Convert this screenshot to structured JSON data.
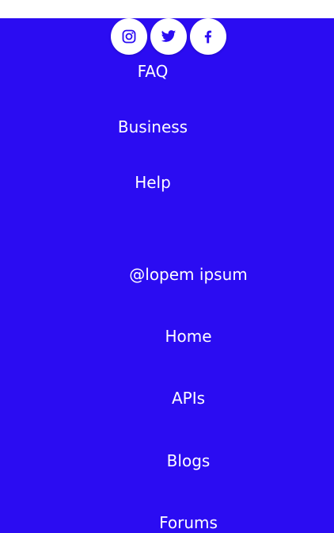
{
  "colors": {
    "background": "#2b0cf2",
    "top_bar": "#ffffff",
    "text": "#ffffff",
    "icon": "#2b0cf2"
  },
  "social": {
    "icons": [
      "instagram-icon",
      "twitter-icon",
      "facebook-icon"
    ]
  },
  "links_group_1": {
    "faq": "FAQ",
    "business": "Business",
    "help": "Help"
  },
  "handle": "@lopem ipsum",
  "links_group_2": {
    "home": "Home",
    "apis": "APIs",
    "blogs": "Blogs",
    "forums": "Forums"
  }
}
